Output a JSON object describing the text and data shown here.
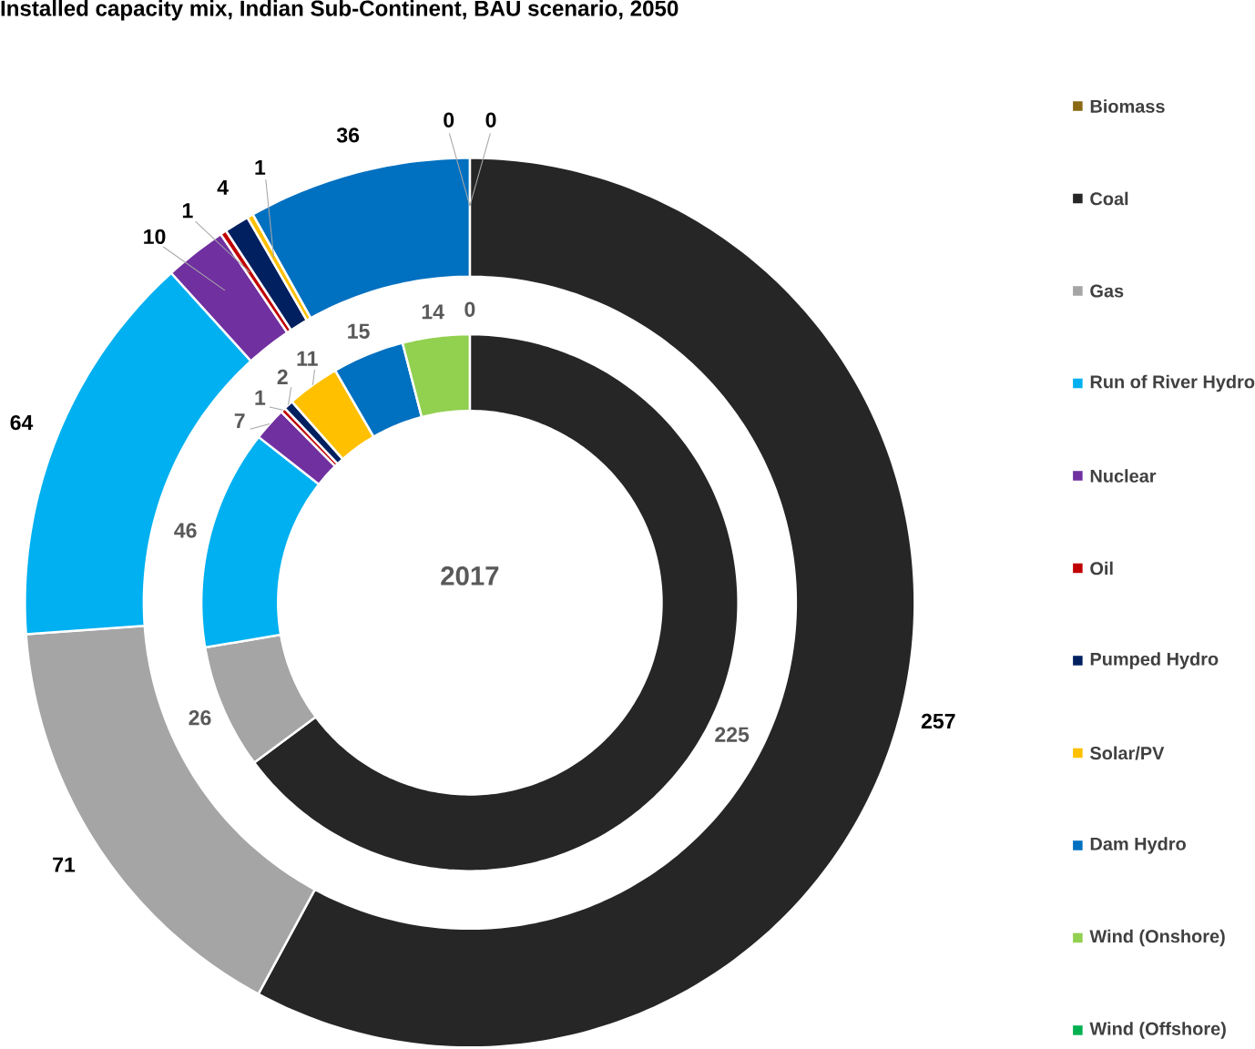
{
  "chart_data": {
    "type": "donut",
    "title": "Installed capacity mix, Indian Sub-Continent, BAU scenario, 2050",
    "categories": [
      "Biomass",
      "Coal",
      "Gas",
      "Run of River Hydro",
      "Nuclear",
      "Oil",
      "Pumped Hydro",
      "Solar/PV",
      "Dam Hydro",
      "Wind (Onshore)",
      "Wind (Offshore)"
    ],
    "colors": [
      "#8b6914",
      "#262626",
      "#a5a5a5",
      "#00b0f0",
      "#7030a0",
      "#c00000",
      "#002060",
      "#ffc000",
      "#0070c0",
      "#92d050",
      "#00b050"
    ],
    "series": [
      {
        "values": [
          0,
          257,
          71,
          64,
          10,
          1,
          4,
          1,
          36,
          0,
          0
        ],
        "value_labels": [
          "0",
          "257",
          "71",
          "64",
          "10",
          "1",
          "4",
          "1",
          "36",
          "0",
          null
        ]
      },
      {
        "name": "2017",
        "values": [
          0,
          225,
          26,
          46,
          7,
          1,
          2,
          11,
          15,
          14,
          0
        ],
        "value_labels": [
          "0",
          "225",
          "26",
          "46",
          "7",
          "1",
          "2",
          "11",
          "15",
          "14",
          null
        ]
      }
    ],
    "legend": "right"
  }
}
